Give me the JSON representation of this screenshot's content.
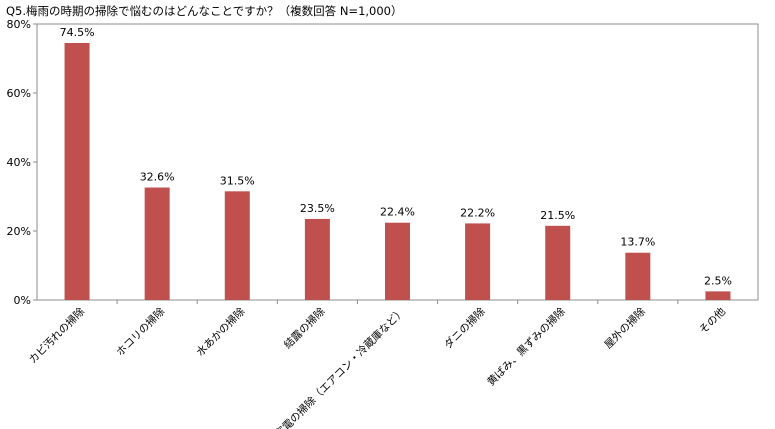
{
  "chart_data": {
    "type": "bar",
    "title": "Q5.梅雨の時期の掃除で悩むのはどんなことですか？（複数回答 N=1,000）",
    "categories": [
      "カビ汚れの掃除",
      "ホコリの掃除",
      "水あかの掃除",
      "結露の掃除",
      "家電の掃除（エアコン・冷蔵庫など）",
      "ダニの掃除",
      "黄ばみ、黒ずみの掃除",
      "屋外の掃除",
      "その他"
    ],
    "values": [
      74.5,
      32.6,
      31.5,
      23.5,
      22.4,
      22.2,
      21.5,
      13.7,
      2.5
    ],
    "data_labels": [
      "74.5%",
      "32.6%",
      "31.5%",
      "23.5%",
      "22.4%",
      "22.2%",
      "21.5%",
      "13.7%",
      "2.5%"
    ],
    "y_ticks": [
      0,
      20,
      40,
      60,
      80
    ],
    "y_tick_labels": [
      "0%",
      "20%",
      "40%",
      "60%",
      "80%"
    ],
    "ylim": [
      0,
      80
    ],
    "grid": false,
    "legend": false,
    "bar_color": "#c0504d",
    "frame_color": "#8c8c8c"
  }
}
